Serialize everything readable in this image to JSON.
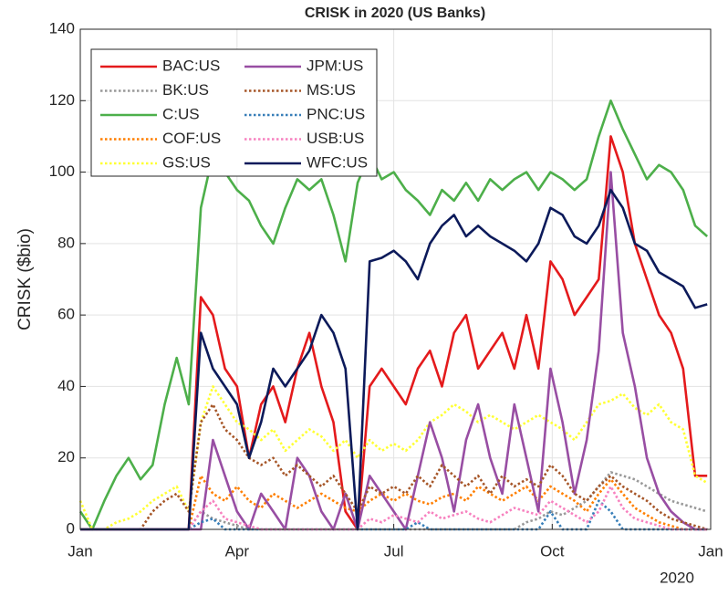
{
  "chart_data": {
    "type": "line",
    "title": "CRISK in 2020 (US Banks)",
    "ylabel": "CRISK ($bio)",
    "x_year_label": "2020",
    "x": [
      0,
      7,
      14,
      21,
      28,
      35,
      42,
      49,
      56,
      63,
      70,
      77,
      84,
      91,
      98,
      105,
      112,
      119,
      126,
      133,
      140,
      147,
      154,
      161,
      168,
      175,
      182,
      189,
      196,
      203,
      210,
      217,
      224,
      231,
      238,
      245,
      252,
      259,
      266,
      273,
      280,
      287,
      294,
      301,
      308,
      315,
      322,
      329,
      336,
      343,
      350,
      357,
      364
    ],
    "xlim": [
      0,
      366
    ],
    "xticks": [
      {
        "value": 0,
        "label": "Jan"
      },
      {
        "value": 91,
        "label": "Apr"
      },
      {
        "value": 182,
        "label": "Jul"
      },
      {
        "value": 274,
        "label": "Oct"
      },
      {
        "value": 366,
        "label": "Jan"
      }
    ],
    "ylim": [
      0,
      140
    ],
    "yticks": [
      0,
      20,
      40,
      60,
      80,
      100,
      120,
      140
    ],
    "grid": true,
    "legend": "upper-left",
    "series": [
      {
        "name": "BAC:US",
        "color": "#e41a1c",
        "style": "solid",
        "values": [
          0,
          0,
          0,
          0,
          0,
          0,
          0,
          0,
          0,
          0,
          65,
          60,
          45,
          40,
          20,
          35,
          40,
          30,
          45,
          55,
          40,
          30,
          5,
          0,
          40,
          45,
          40,
          35,
          45,
          50,
          40,
          55,
          60,
          45,
          50,
          55,
          45,
          60,
          45,
          75,
          70,
          60,
          65,
          70,
          110,
          100,
          80,
          70,
          60,
          55,
          45,
          15,
          15
        ]
      },
      {
        "name": "BK:US",
        "color": "#999999",
        "style": "dotted",
        "values": [
          0,
          0,
          0,
          0,
          0,
          0,
          0,
          0,
          0,
          0,
          5,
          3,
          2,
          1,
          0,
          0,
          0,
          0,
          0,
          0,
          0,
          0,
          0,
          0,
          0,
          0,
          0,
          0,
          0,
          0,
          0,
          0,
          0,
          0,
          0,
          0,
          0,
          2,
          3,
          5,
          4,
          6,
          8,
          12,
          16,
          15,
          14,
          12,
          10,
          8,
          7,
          6,
          5
        ]
      },
      {
        "name": "C:US",
        "color": "#4daf4a",
        "style": "solid",
        "values": [
          5,
          0,
          8,
          15,
          20,
          14,
          18,
          35,
          48,
          35,
          90,
          105,
          100,
          95,
          92,
          85,
          80,
          90,
          98,
          95,
          98,
          88,
          75,
          97,
          105,
          98,
          100,
          95,
          92,
          88,
          95,
          92,
          97,
          92,
          98,
          95,
          98,
          100,
          95,
          100,
          98,
          95,
          98,
          110,
          120,
          112,
          105,
          98,
          102,
          100,
          95,
          85,
          82
        ]
      },
      {
        "name": "COF:US",
        "color": "#ff7f00",
        "style": "dotted",
        "values": [
          0,
          0,
          0,
          0,
          0,
          0,
          0,
          0,
          0,
          0,
          15,
          10,
          8,
          12,
          8,
          6,
          10,
          8,
          6,
          8,
          10,
          8,
          6,
          5,
          8,
          10,
          8,
          10,
          8,
          7,
          9,
          10,
          8,
          12,
          10,
          8,
          10,
          12,
          8,
          12,
          10,
          8,
          5,
          10,
          14,
          10,
          6,
          4,
          2,
          1,
          0,
          0,
          0
        ]
      },
      {
        "name": "GS:US",
        "color": "#ffff33",
        "style": "dotted",
        "values": [
          8,
          0,
          0,
          2,
          3,
          5,
          8,
          10,
          12,
          5,
          30,
          40,
          35,
          30,
          28,
          25,
          28,
          22,
          25,
          28,
          26,
          22,
          25,
          20,
          25,
          22,
          24,
          22,
          25,
          30,
          32,
          35,
          33,
          30,
          32,
          30,
          28,
          30,
          32,
          30,
          28,
          25,
          30,
          35,
          36,
          38,
          34,
          32,
          35,
          30,
          28,
          15,
          13
        ]
      },
      {
        "name": "JPM:US",
        "color": "#984ea3",
        "style": "solid",
        "values": [
          0,
          0,
          0,
          0,
          0,
          0,
          0,
          0,
          0,
          0,
          0,
          25,
          15,
          5,
          0,
          10,
          5,
          0,
          20,
          15,
          5,
          0,
          10,
          0,
          15,
          10,
          5,
          0,
          15,
          30,
          20,
          5,
          25,
          35,
          20,
          10,
          35,
          20,
          5,
          45,
          30,
          10,
          25,
          50,
          100,
          55,
          40,
          20,
          10,
          5,
          2,
          0,
          0
        ]
      },
      {
        "name": "MS:US",
        "color": "#a65628",
        "style": "dotted",
        "values": [
          0,
          0,
          0,
          0,
          0,
          0,
          5,
          8,
          10,
          5,
          30,
          35,
          28,
          25,
          20,
          18,
          20,
          15,
          18,
          15,
          12,
          15,
          10,
          5,
          12,
          10,
          12,
          10,
          15,
          12,
          18,
          15,
          12,
          15,
          10,
          15,
          12,
          14,
          12,
          18,
          15,
          10,
          8,
          12,
          15,
          12,
          10,
          8,
          5,
          3,
          2,
          1,
          0
        ]
      },
      {
        "name": "PNC:US",
        "color": "#377eb8",
        "style": "dotted",
        "values": [
          0,
          0,
          0,
          0,
          0,
          0,
          0,
          0,
          0,
          0,
          2,
          3,
          0,
          0,
          0,
          0,
          0,
          0,
          0,
          0,
          0,
          0,
          0,
          0,
          0,
          0,
          0,
          0,
          2,
          0,
          0,
          0,
          0,
          0,
          0,
          0,
          0,
          0,
          0,
          5,
          0,
          0,
          0,
          8,
          5,
          0,
          0,
          0,
          0,
          0,
          0,
          0,
          0
        ]
      },
      {
        "name": "USB:US",
        "color": "#f781bf",
        "style": "dotted",
        "values": [
          0,
          0,
          0,
          0,
          0,
          0,
          0,
          0,
          0,
          0,
          5,
          8,
          3,
          2,
          1,
          0,
          0,
          0,
          0,
          0,
          0,
          0,
          0,
          0,
          3,
          2,
          4,
          3,
          2,
          5,
          3,
          4,
          5,
          3,
          2,
          4,
          6,
          5,
          4,
          8,
          6,
          4,
          2,
          5,
          12,
          6,
          3,
          2,
          1,
          0,
          0,
          0,
          0
        ]
      },
      {
        "name": "WFC:US",
        "color": "#0c1a5a",
        "style": "solid",
        "values": [
          0,
          0,
          0,
          0,
          0,
          0,
          0,
          0,
          0,
          0,
          55,
          45,
          40,
          35,
          20,
          30,
          45,
          40,
          45,
          50,
          60,
          55,
          45,
          0,
          75,
          76,
          78,
          75,
          70,
          80,
          85,
          88,
          82,
          85,
          82,
          80,
          78,
          75,
          80,
          90,
          88,
          82,
          80,
          85,
          95,
          90,
          80,
          78,
          72,
          70,
          68,
          62,
          63
        ]
      }
    ]
  }
}
